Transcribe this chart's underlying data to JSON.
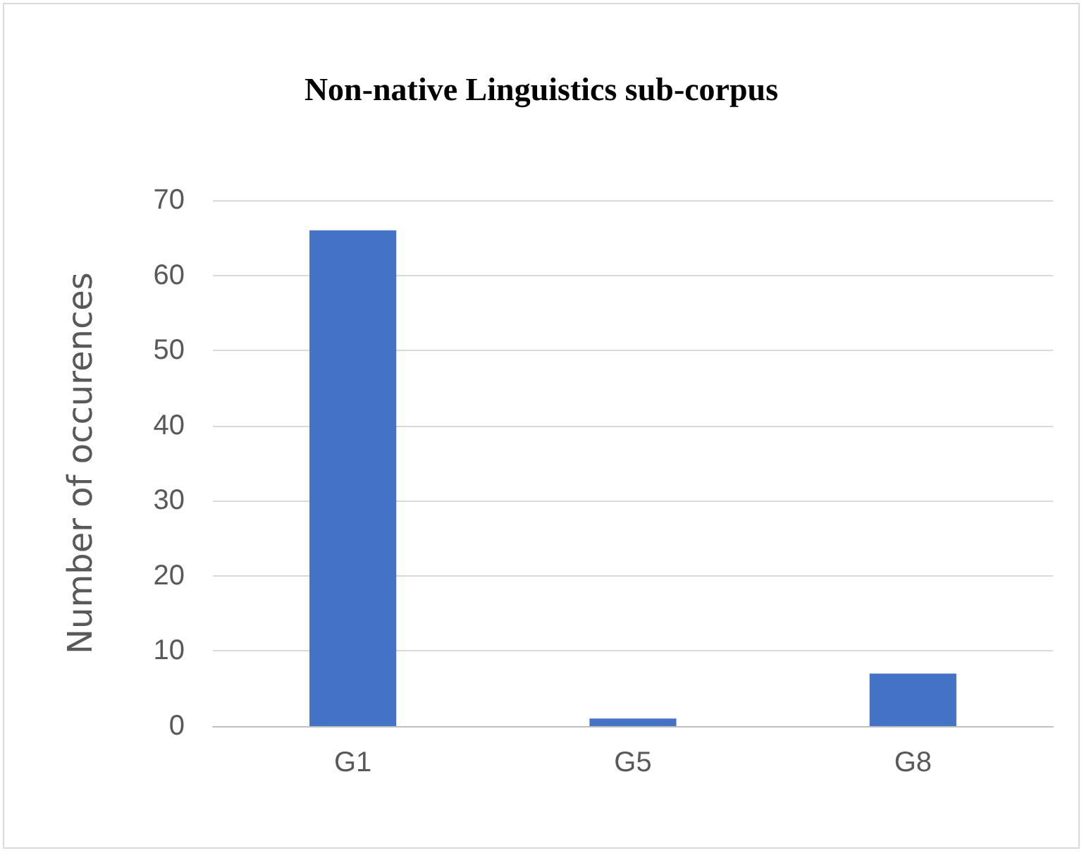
{
  "chart_data": {
    "type": "bar",
    "title": "Non-native Linguistics sub-corpus",
    "ylabel": "Number of occurences",
    "categories": [
      "G1",
      "G5",
      "G8"
    ],
    "values": [
      66,
      1,
      7
    ],
    "color": "#4472c4",
    "ylim": [
      0,
      70
    ],
    "yticks": [
      0,
      10,
      20,
      30,
      40,
      50,
      60,
      70
    ],
    "grid": "y"
  }
}
